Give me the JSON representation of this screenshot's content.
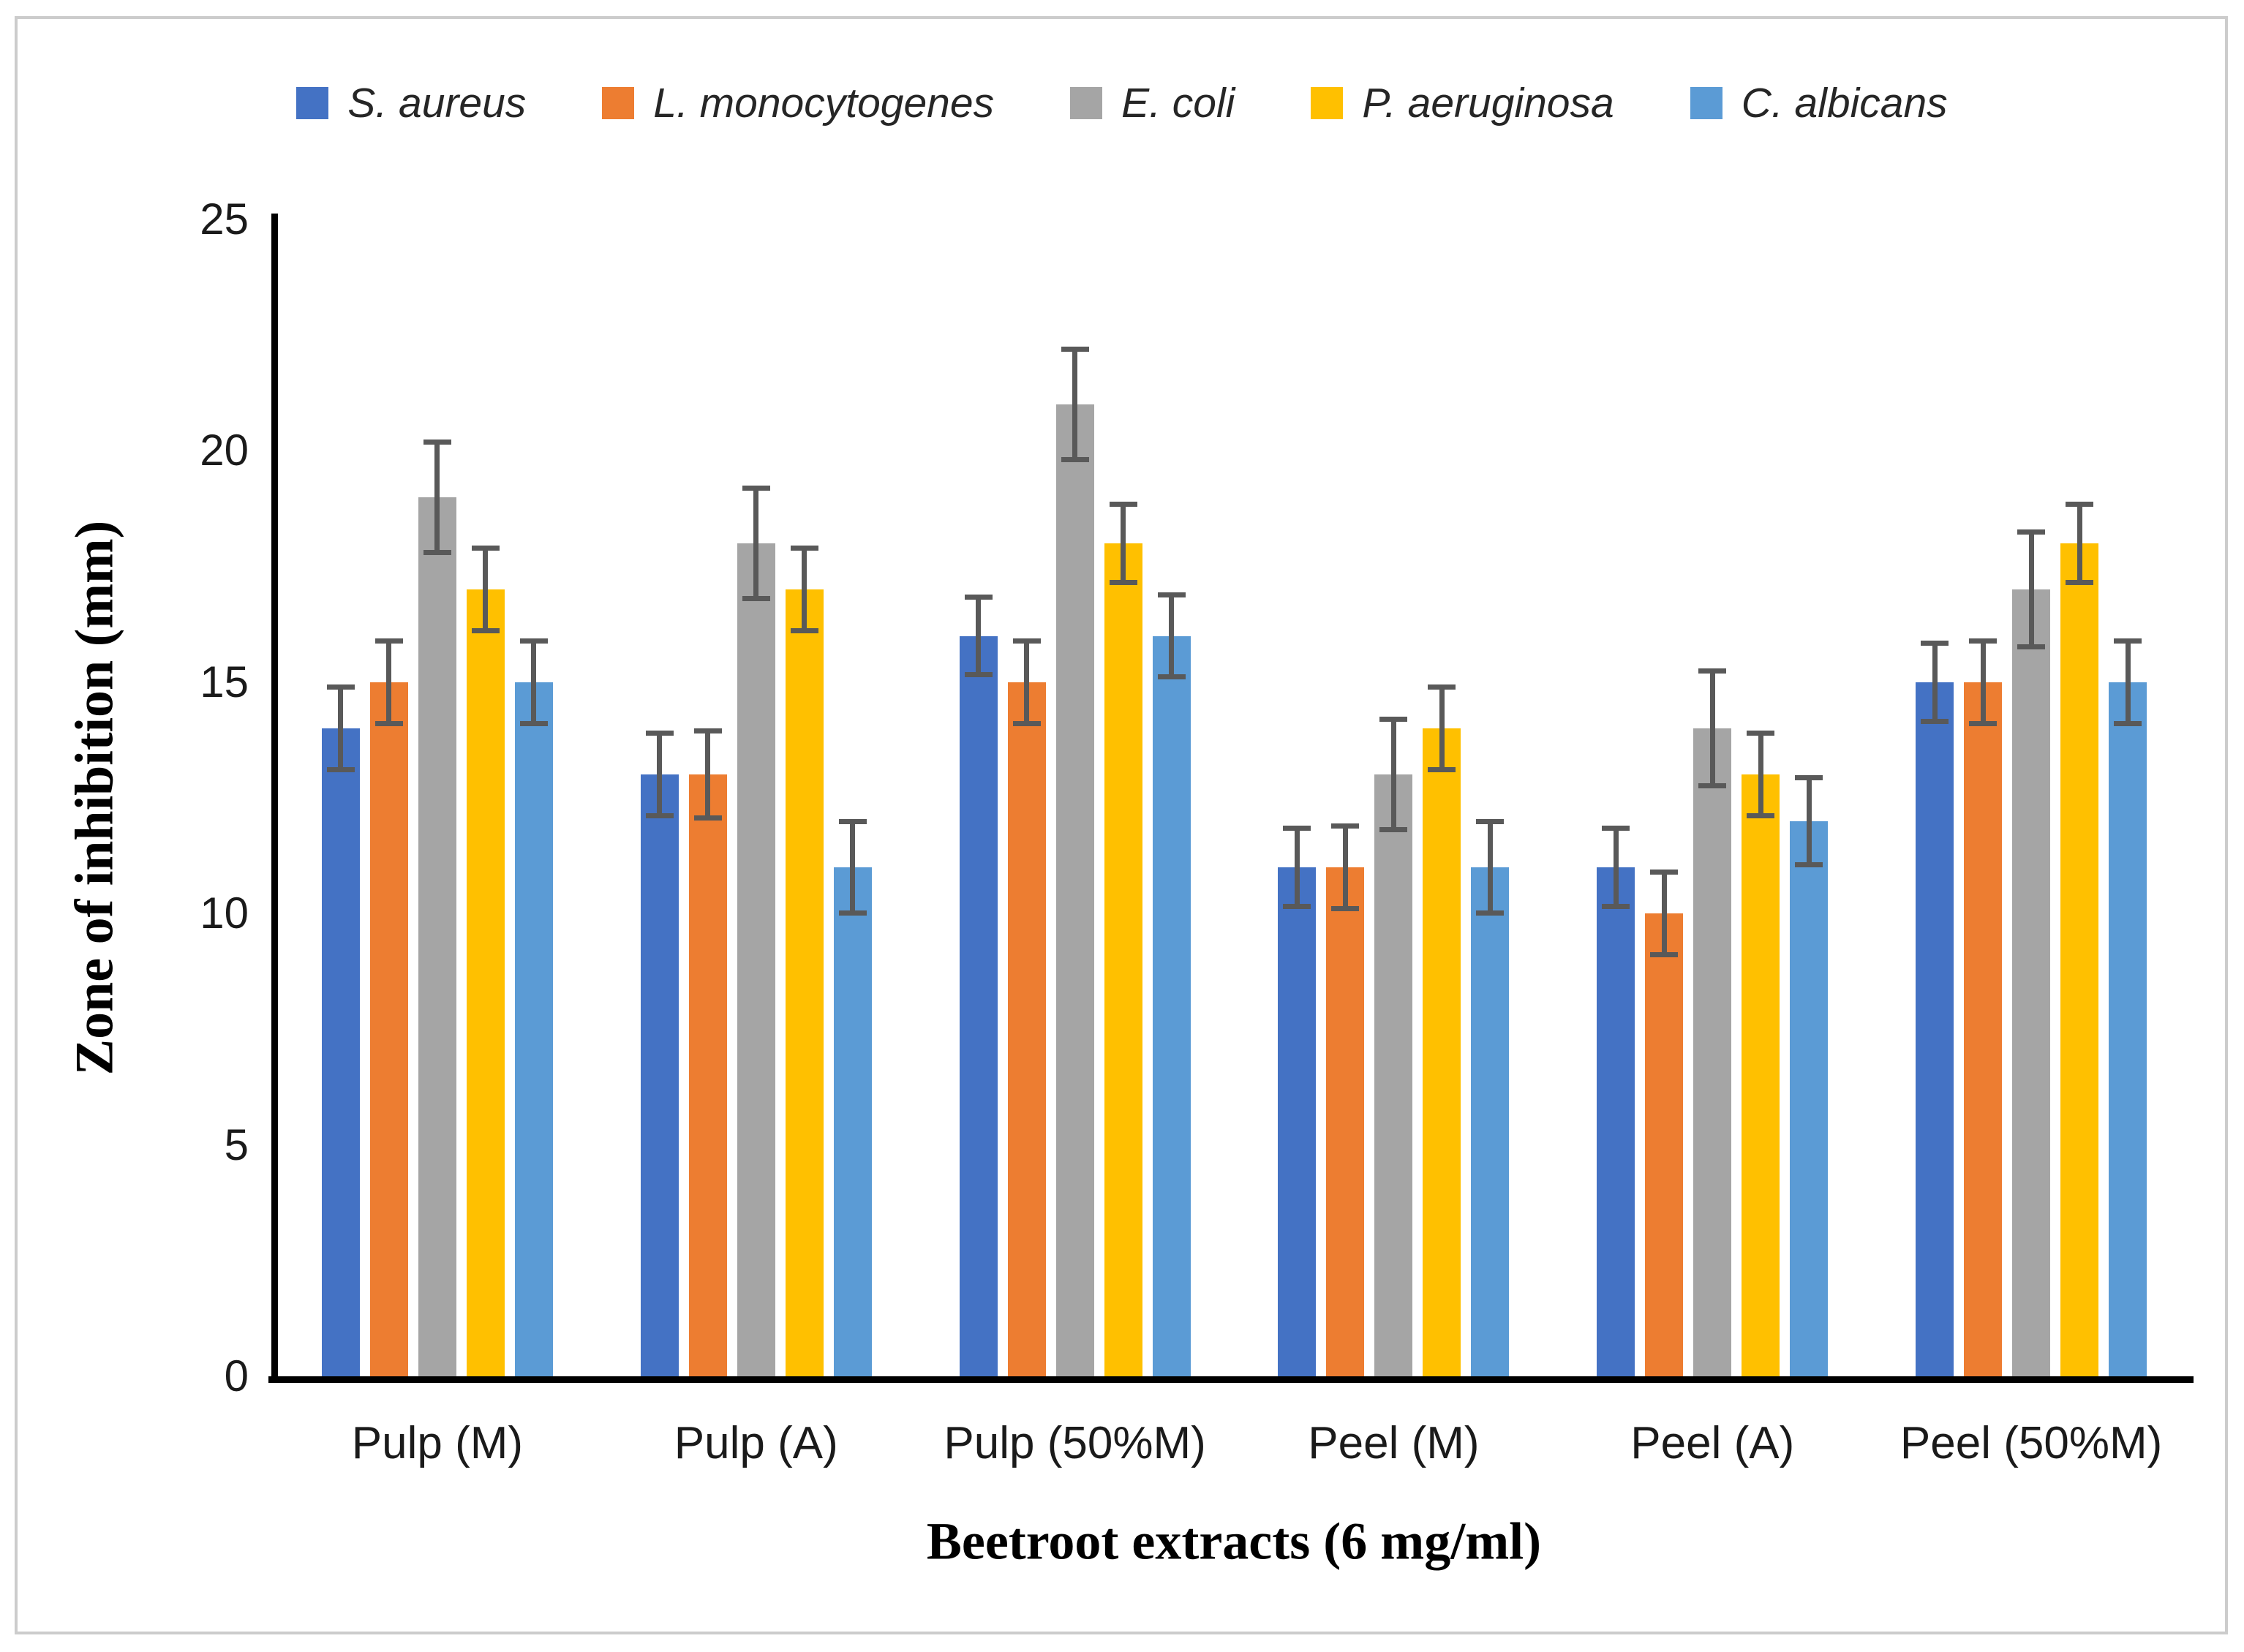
{
  "figure": {
    "background": "#ffffff",
    "border_color": "#cccccc",
    "axis_color": "#000000",
    "tick_text_color": "#1a1a1a",
    "legend_text_color": "#262626"
  },
  "chart_data": {
    "type": "bar",
    "title": "",
    "xlabel": "Beetroot extracts (6 mg/ml)",
    "ylabel": "Zone of inhibition (mm)",
    "ylim": [
      0,
      25
    ],
    "yticks": [
      0,
      5,
      10,
      15,
      20,
      25
    ],
    "grid": false,
    "legend_position": "top",
    "error_bars": true,
    "error_bar_color": "#595959",
    "categories": [
      "Pulp (M)",
      "Pulp (A)",
      "Pulp (50%M)",
      "Peel (M)",
      "Peel (A)",
      "Peel (50%M)"
    ],
    "series": [
      {
        "name": "S. aureus",
        "color": "#4472C4",
        "values": [
          14,
          13,
          16,
          11,
          11,
          15
        ],
        "errors": [
          0.9,
          0.9,
          0.85,
          0.85,
          0.85,
          0.85
        ]
      },
      {
        "name": "L. monocytogenes",
        "color": "#ED7D31",
        "values": [
          15,
          13,
          15,
          11,
          10,
          15
        ],
        "errors": [
          0.9,
          0.95,
          0.9,
          0.9,
          0.9,
          0.9
        ]
      },
      {
        "name": "E. coli",
        "color": "#A5A5A5",
        "values": [
          19,
          18,
          21,
          13,
          14,
          17
        ],
        "errors": [
          1.2,
          1.2,
          1.2,
          1.2,
          1.25,
          1.25
        ]
      },
      {
        "name": "P. aeruginosa",
        "color": "#FFC000",
        "values": [
          17,
          17,
          18,
          14,
          13,
          18
        ],
        "errors": [
          0.9,
          0.9,
          0.85,
          0.9,
          0.9,
          0.85
        ]
      },
      {
        "name": "C. albicans",
        "color": "#5B9BD5",
        "values": [
          15,
          11,
          16,
          11,
          12,
          15
        ],
        "errors": [
          0.9,
          1.0,
          0.9,
          1.0,
          0.95,
          0.9
        ]
      }
    ]
  }
}
